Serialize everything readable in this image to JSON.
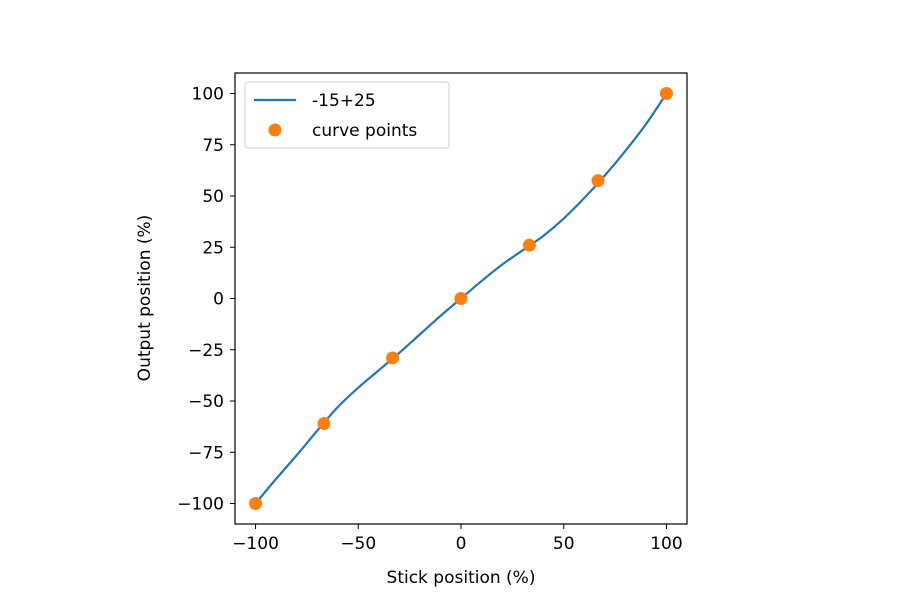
{
  "chart_data": {
    "type": "line",
    "xlabel": "Stick position (%)",
    "ylabel": "Output position (%)",
    "xlim": [
      -110,
      110
    ],
    "ylim": [
      -110,
      110
    ],
    "xticks": [
      -100,
      -50,
      0,
      50,
      100
    ],
    "xtick_labels": [
      "−100",
      "−50",
      "0",
      "50",
      "100"
    ],
    "yticks": [
      -100,
      -75,
      -50,
      -25,
      0,
      25,
      50,
      75,
      100
    ],
    "ytick_labels": [
      "−100",
      "−75",
      "−50",
      "−25",
      "0",
      "25",
      "50",
      "75",
      "100"
    ],
    "grid": false,
    "legend_position": "upper-left",
    "series": [
      {
        "name": "-15+25",
        "kind": "line",
        "color": "#1f77b4",
        "x": [
          -100,
          -90,
          -80,
          -70,
          -60,
          -50,
          -40,
          -30,
          -20,
          -10,
          0,
          10,
          20,
          30,
          40,
          50,
          60,
          70,
          80,
          90,
          100
        ],
        "y": [
          -100,
          -88,
          -76.5,
          -64.5,
          -53,
          -43.5,
          -35,
          -26.5,
          -17.5,
          -8.5,
          0,
          8.5,
          16.5,
          23.5,
          30.5,
          39,
          49,
          60,
          72,
          85,
          100
        ]
      },
      {
        "name": "curve points",
        "kind": "scatter",
        "color": "#ff7f0e",
        "x": [
          -100,
          -66.7,
          -33.3,
          0,
          33.3,
          66.7,
          100
        ],
        "y": [
          -100,
          -61,
          -29,
          0,
          26,
          57.5,
          100
        ]
      }
    ]
  }
}
